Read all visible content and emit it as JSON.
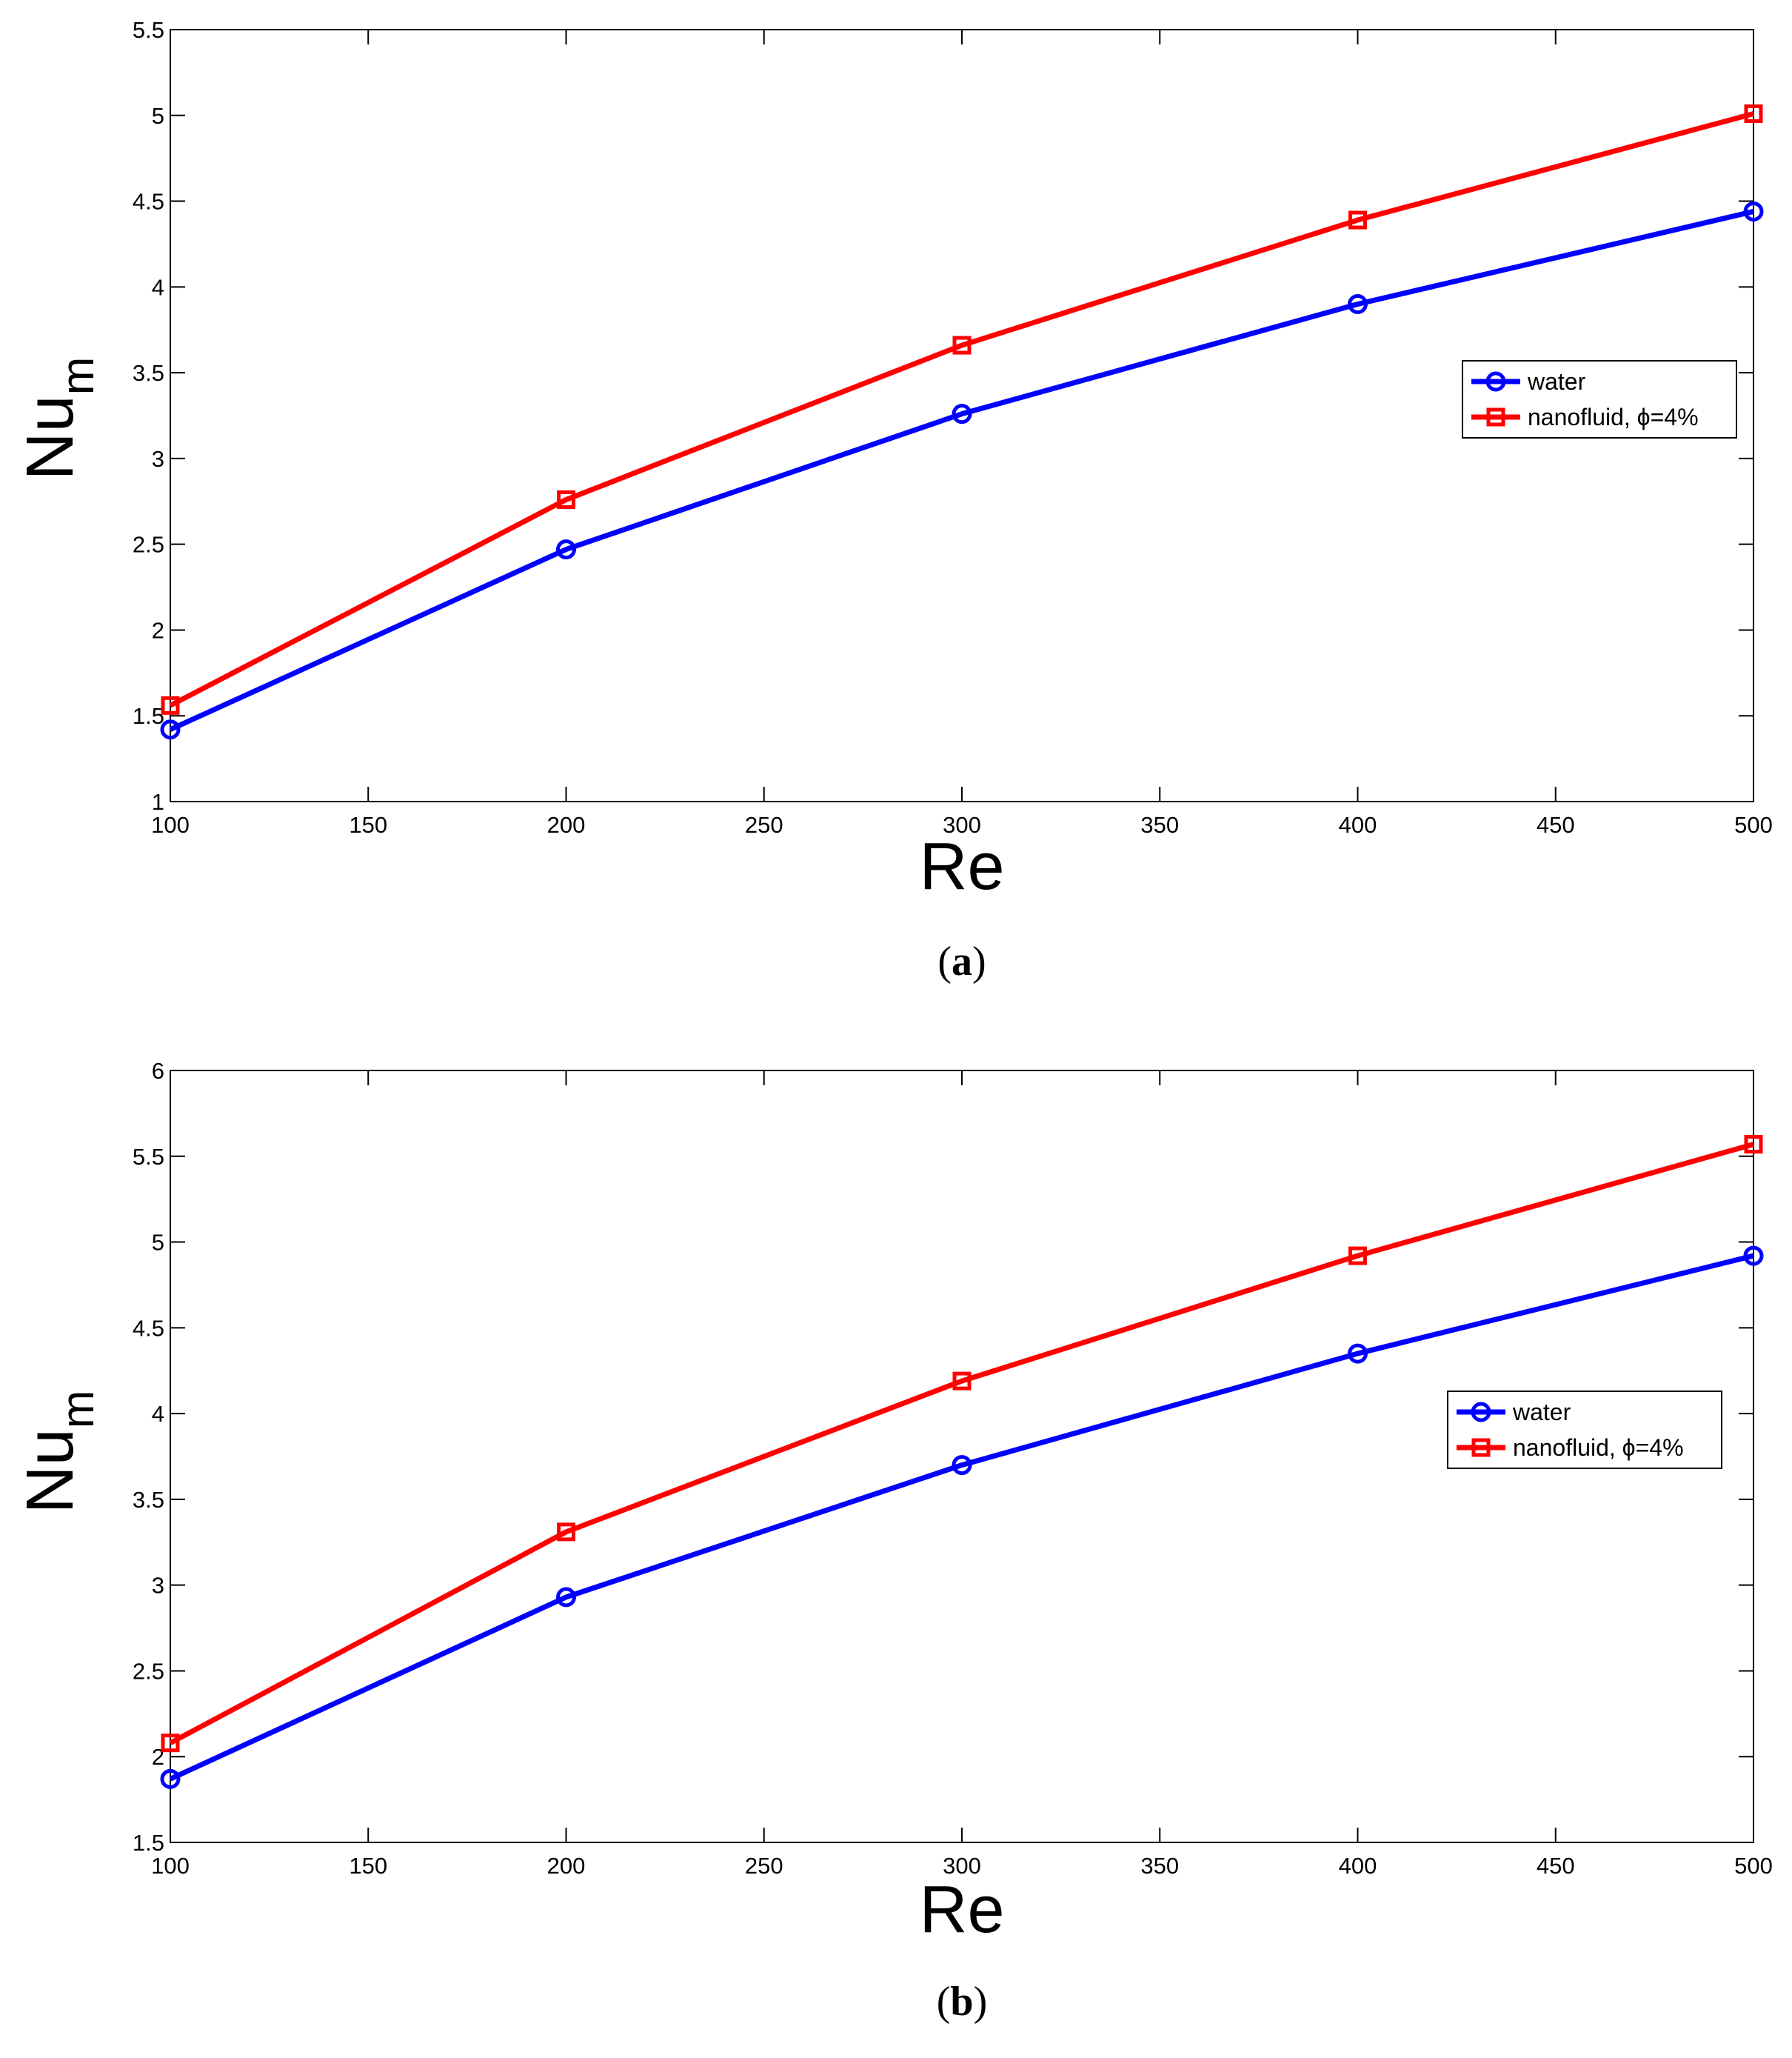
{
  "chart_data": [
    {
      "type": "line",
      "panel_label": "a",
      "xlabel": "Re",
      "ylabel": "Nu",
      "ylabel_sub": "m",
      "x": [
        100,
        200,
        300,
        400,
        500
      ],
      "xlim": [
        100,
        500
      ],
      "ylim": [
        1,
        5.5
      ],
      "xticks": [
        100,
        150,
        200,
        250,
        300,
        350,
        400,
        450,
        500
      ],
      "yticks": [
        "1",
        "1.5",
        "2",
        "2.5",
        "3",
        "3.5",
        "4",
        "4.5",
        "5",
        "5.5"
      ],
      "legend_position": "right",
      "series": [
        {
          "name": "water",
          "color": "#0000ff",
          "marker": "circle",
          "values": [
            1.42,
            2.47,
            3.26,
            3.9,
            4.44
          ]
        },
        {
          "name": "nanofluid, ϕ=4%",
          "color": "#ff0000",
          "marker": "square",
          "values": [
            1.56,
            2.76,
            3.66,
            4.39,
            5.01
          ]
        }
      ]
    },
    {
      "type": "line",
      "panel_label": "b",
      "xlabel": "Re",
      "ylabel": "Nu",
      "ylabel_sub": "m",
      "x": [
        100,
        200,
        300,
        400,
        500
      ],
      "xlim": [
        100,
        500
      ],
      "ylim": [
        1.5,
        6
      ],
      "xticks": [
        100,
        150,
        200,
        250,
        300,
        350,
        400,
        450,
        500
      ],
      "yticks": [
        "1.5",
        "2",
        "2.5",
        "3",
        "3.5",
        "4",
        "4.5",
        "5",
        "5.5",
        "6"
      ],
      "legend_position": "right",
      "series": [
        {
          "name": "water",
          "color": "#0000ff",
          "marker": "circle",
          "values": [
            1.87,
            2.93,
            3.7,
            4.35,
            4.92
          ]
        },
        {
          "name": "nanofluid, ϕ=4%",
          "color": "#ff0000",
          "marker": "square",
          "values": [
            2.08,
            3.31,
            4.19,
            4.92,
            5.57
          ]
        }
      ]
    }
  ]
}
